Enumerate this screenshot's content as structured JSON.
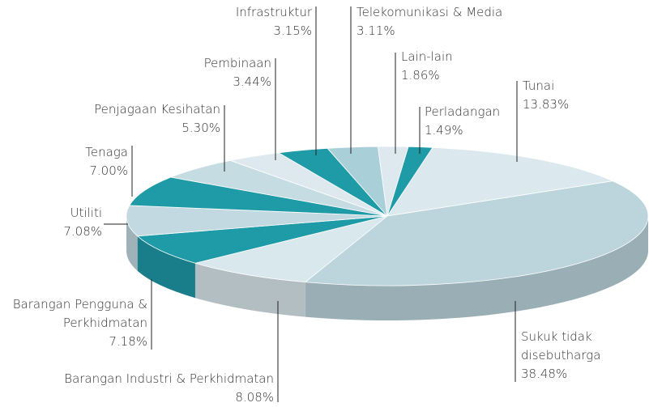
{
  "chart_data": {
    "type": "pie3d",
    "categories": [
      "Tunai",
      "Sukuk tidak disebutharga",
      "Barangan Industri & Perkhidmatan",
      "Barangan Pengguna & Perkhidmatan",
      "Utiliti",
      "Tenaga",
      "Penjagaan Kesihatan",
      "Pembinaan",
      "Infrastruktur",
      "Telekomunikasi & Media",
      "Lain-lain",
      "Perladangan"
    ],
    "values": [
      13.83,
      38.48,
      8.08,
      7.18,
      7.08,
      7.0,
      5.3,
      3.44,
      3.15,
      3.11,
      1.86,
      1.49
    ],
    "value_labels": [
      "13.83%",
      "38.48%",
      "8.08%",
      "7.18%",
      "7.08%",
      "7.00%",
      "5.30%",
      "3.44%",
      "3.15%",
      "3.11%",
      "1.86%",
      "1.49%"
    ],
    "colors": [
      "#dbe9ee",
      "#bcd5dd",
      "#d9e8ed",
      "#1f9aa7",
      "#c3d9e1",
      "#1f9aa7",
      "#c6dce3",
      "#dde9ee",
      "#1f9aa7",
      "#a9cfd8",
      "#dde9ee",
      "#1f9aa7"
    ]
  }
}
